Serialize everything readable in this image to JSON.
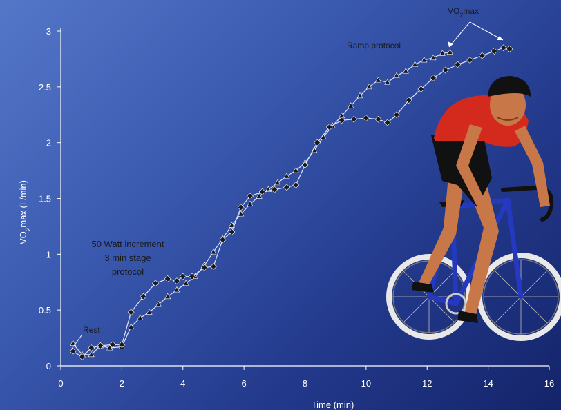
{
  "chart_data": {
    "type": "line",
    "xlabel": "Time (min)",
    "ylabel_parts": {
      "pre": "VO",
      "sub": "2",
      "post": "max (L/min)"
    },
    "xlim": [
      0,
      16
    ],
    "ylim": [
      0,
      3
    ],
    "x_ticks": [
      0,
      2,
      4,
      6,
      8,
      10,
      12,
      14,
      16
    ],
    "y_ticks": [
      0,
      0.5,
      1,
      1.5,
      2,
      2.5,
      3
    ],
    "x_tick_labels": [
      "0",
      "2",
      "4",
      "6",
      "8",
      "10",
      "12",
      "14",
      "16"
    ],
    "y_tick_labels": [
      "0",
      "0.5",
      "1",
      "1.5",
      "2",
      "2.5",
      "3"
    ],
    "series": [
      {
        "name": "Ramp protocol",
        "marker": "triangle",
        "points": [
          [
            0.4,
            0.2
          ],
          [
            0.7,
            0.1
          ],
          [
            1.0,
            0.1
          ],
          [
            1.3,
            0.18
          ],
          [
            1.6,
            0.16
          ],
          [
            2.0,
            0.17
          ],
          [
            2.3,
            0.35
          ],
          [
            2.6,
            0.43
          ],
          [
            2.9,
            0.48
          ],
          [
            3.2,
            0.55
          ],
          [
            3.5,
            0.62
          ],
          [
            3.8,
            0.68
          ],
          [
            4.1,
            0.74
          ],
          [
            4.4,
            0.8
          ],
          [
            4.7,
            0.9
          ],
          [
            5.0,
            1.02
          ],
          [
            5.3,
            1.14
          ],
          [
            5.6,
            1.26
          ],
          [
            5.9,
            1.36
          ],
          [
            6.2,
            1.45
          ],
          [
            6.5,
            1.52
          ],
          [
            6.8,
            1.58
          ],
          [
            7.1,
            1.64
          ],
          [
            7.4,
            1.7
          ],
          [
            7.7,
            1.75
          ],
          [
            8.0,
            1.82
          ],
          [
            8.3,
            1.93
          ],
          [
            8.6,
            2.05
          ],
          [
            8.9,
            2.15
          ],
          [
            9.2,
            2.24
          ],
          [
            9.5,
            2.33
          ],
          [
            9.8,
            2.42
          ],
          [
            10.1,
            2.5
          ],
          [
            10.4,
            2.56
          ],
          [
            10.7,
            2.54
          ],
          [
            11.0,
            2.6
          ],
          [
            11.3,
            2.64
          ],
          [
            11.6,
            2.7
          ],
          [
            11.9,
            2.74
          ],
          [
            12.2,
            2.76
          ],
          [
            12.5,
            2.8
          ],
          [
            12.75,
            2.81
          ]
        ]
      },
      {
        "name": "50 Watt increment 3 min stage protocol",
        "marker": "diamond",
        "points": [
          [
            0.4,
            0.13
          ],
          [
            0.7,
            0.08
          ],
          [
            1.0,
            0.16
          ],
          [
            1.3,
            0.18
          ],
          [
            1.7,
            0.19
          ],
          [
            2.0,
            0.19
          ],
          [
            2.3,
            0.48
          ],
          [
            2.7,
            0.62
          ],
          [
            3.1,
            0.74
          ],
          [
            3.5,
            0.78
          ],
          [
            3.8,
            0.76
          ],
          [
            4.0,
            0.8
          ],
          [
            4.3,
            0.8
          ],
          [
            4.7,
            0.88
          ],
          [
            5.0,
            0.89
          ],
          [
            5.3,
            1.13
          ],
          [
            5.6,
            1.2
          ],
          [
            5.9,
            1.42
          ],
          [
            6.2,
            1.52
          ],
          [
            6.6,
            1.56
          ],
          [
            7.0,
            1.58
          ],
          [
            7.4,
            1.6
          ],
          [
            7.7,
            1.62
          ],
          [
            8.0,
            1.8
          ],
          [
            8.4,
            2.0
          ],
          [
            8.8,
            2.14
          ],
          [
            9.2,
            2.2
          ],
          [
            9.6,
            2.21
          ],
          [
            10.0,
            2.22
          ],
          [
            10.4,
            2.21
          ],
          [
            10.7,
            2.18
          ],
          [
            11.0,
            2.25
          ],
          [
            11.4,
            2.38
          ],
          [
            11.8,
            2.48
          ],
          [
            12.2,
            2.58
          ],
          [
            12.6,
            2.65
          ],
          [
            13.0,
            2.7
          ],
          [
            13.4,
            2.74
          ],
          [
            13.8,
            2.78
          ],
          [
            14.2,
            2.82
          ],
          [
            14.5,
            2.85
          ],
          [
            14.7,
            2.84
          ]
        ]
      }
    ],
    "annotations": {
      "vo2max": "VO2max",
      "ramp": "Ramp protocol",
      "stage_lines": [
        "50 Watt increment",
        "3 min stage",
        "protocol"
      ],
      "rest": "Rest"
    },
    "colors": {
      "background_start": "#5577c8",
      "background_end": "#14246a",
      "text": "#ffffff",
      "markers": "#1a1a1a",
      "axis": "#ffffff"
    }
  },
  "illustration": {
    "subject": "cyclist-on-racing-bike",
    "colors": {
      "jersey": "#d42a1e",
      "shorts": "#111111",
      "frame": "#2438c0",
      "helmet": "#111111",
      "skin": "#c87848"
    }
  }
}
